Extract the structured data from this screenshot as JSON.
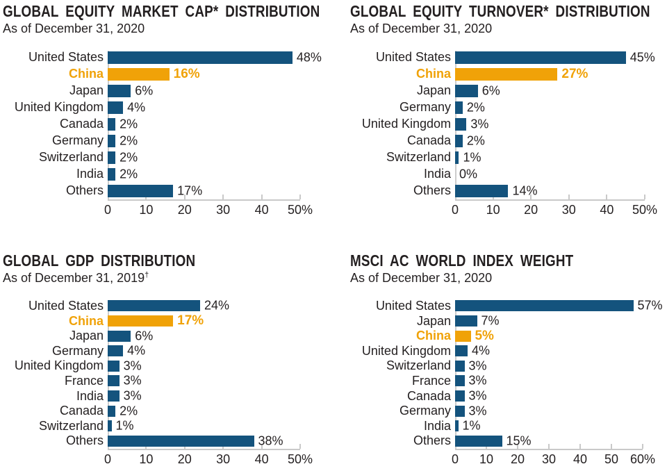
{
  "colors": {
    "bar_default": "#14537d",
    "bar_highlight": "#f0a208",
    "text": "#231f20",
    "axis": "#c9c9c9"
  },
  "chart_data": [
    {
      "type": "bar",
      "title": "GLOBAL EQUITY MARKET CAP* DISTRIBUTION",
      "subtitle": "As of December 31, 2020",
      "subtitle_sup": "",
      "orientation": "horizontal",
      "categories": [
        "United States",
        "China",
        "Japan",
        "United Kingdom",
        "Canada",
        "Germany",
        "Switzerland",
        "India",
        "Others"
      ],
      "values": [
        48,
        16,
        6,
        4,
        2,
        2,
        2,
        2,
        17
      ],
      "value_labels": [
        "48%",
        "16%",
        "6%",
        "4%",
        "2%",
        "2%",
        "2%",
        "2%",
        "17%"
      ],
      "highlight_category": "China",
      "xlim": [
        0,
        50
      ],
      "tick_labels": [
        "0",
        "10",
        "20",
        "30",
        "40",
        "50%"
      ],
      "legend": "none",
      "grid": "off"
    },
    {
      "type": "bar",
      "title": "GLOBAL EQUITY TURNOVER* DISTRIBUTION",
      "subtitle": "As of December 31, 2020",
      "subtitle_sup": "",
      "orientation": "horizontal",
      "categories": [
        "United States",
        "China",
        "Japan",
        "Germany",
        "United Kingdom",
        "Canada",
        "Switzerland",
        "India",
        "Others"
      ],
      "values": [
        45,
        27,
        6,
        2,
        3,
        2,
        1,
        0,
        14
      ],
      "value_labels": [
        "45%",
        "27%",
        "6%",
        "2%",
        "3%",
        "2%",
        "1%",
        "0%",
        "14%"
      ],
      "highlight_category": "China",
      "xlim": [
        0,
        50
      ],
      "tick_labels": [
        "0",
        "10",
        "20",
        "30",
        "40",
        "50%"
      ],
      "legend": "none",
      "grid": "off"
    },
    {
      "type": "bar",
      "title": "GLOBAL GDP DISTRIBUTION",
      "subtitle": "As of December 31, 2019",
      "subtitle_sup": "†",
      "orientation": "horizontal",
      "categories": [
        "United States",
        "China",
        "Japan",
        "Germany",
        "United Kingdom",
        "France",
        "India",
        "Canada",
        "Switzerland",
        "Others"
      ],
      "values": [
        24,
        17,
        6,
        4,
        3,
        3,
        3,
        2,
        1,
        38
      ],
      "value_labels": [
        "24%",
        "17%",
        "6%",
        "4%",
        "3%",
        "3%",
        "3%",
        "2%",
        "1%",
        "38%"
      ],
      "highlight_category": "China",
      "xlim": [
        0,
        50
      ],
      "tick_labels": [
        "0",
        "10",
        "20",
        "30",
        "40",
        "50%"
      ],
      "legend": "none",
      "grid": "off"
    },
    {
      "type": "bar",
      "title": "MSCI AC WORLD INDEX WEIGHT",
      "subtitle": "As of December 31, 2020",
      "subtitle_sup": "",
      "orientation": "horizontal",
      "categories": [
        "United States",
        "Japan",
        "China",
        "United Kingdom",
        "Switzerland",
        "France",
        "Canada",
        "Germany",
        "India",
        "Others"
      ],
      "values": [
        57,
        7,
        5,
        4,
        3,
        3,
        3,
        3,
        1,
        15
      ],
      "value_labels": [
        "57%",
        "7%",
        "5%",
        "4%",
        "3%",
        "3%",
        "3%",
        "3%",
        "1%",
        "15%"
      ],
      "highlight_category": "China",
      "xlim": [
        0,
        60
      ],
      "tick_labels": [
        "0",
        "10",
        "20",
        "30",
        "40",
        "50",
        "60%"
      ],
      "legend": "none",
      "grid": "off"
    }
  ]
}
